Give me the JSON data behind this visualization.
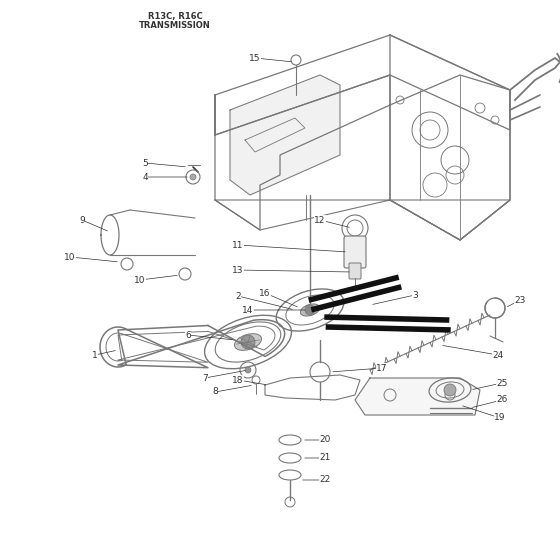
{
  "title_line1": "R13C, R16C",
  "title_line2": "TRANSMISSION",
  "bg_color": "#ffffff",
  "lc": "#777777",
  "dc": "#333333",
  "black": "#111111",
  "figsize": [
    5.6,
    5.6
  ],
  "dpi": 100
}
